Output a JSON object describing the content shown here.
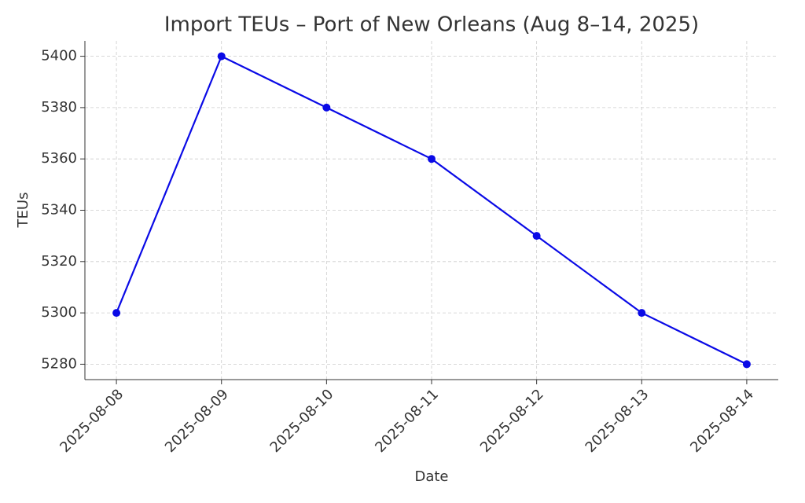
{
  "chart_data": {
    "type": "line",
    "title": "Import TEUs – Port of New Orleans (Aug 8–14, 2025)",
    "x_label": "Date",
    "y_label": "TEUs",
    "categories": [
      "2025-08-08",
      "2025-08-09",
      "2025-08-10",
      "2025-08-11",
      "2025-08-12",
      "2025-08-13",
      "2025-08-14"
    ],
    "series": [
      {
        "name": "Import TEUs",
        "color": "#0a0ae6",
        "values": [
          5300,
          5400,
          5380,
          5360,
          5330,
          5300,
          5280
        ]
      }
    ],
    "ylim": [
      5274,
      5406
    ],
    "yticks": [
      5280,
      5300,
      5320,
      5340,
      5360,
      5380,
      5400
    ],
    "grid": true
  }
}
